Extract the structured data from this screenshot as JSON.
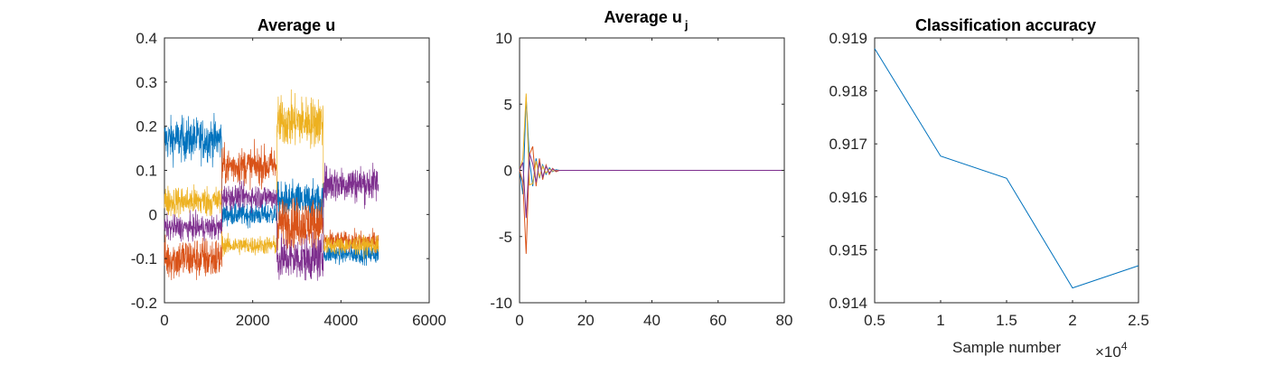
{
  "colors": [
    "#0072BD",
    "#D95319",
    "#EDB120",
    "#7E2F8E"
  ],
  "chart_data": [
    {
      "type": "line",
      "title": "Average u",
      "xlabel": "",
      "ylabel": "",
      "xlim": [
        0,
        6000
      ],
      "ylim": [
        -0.2,
        0.4
      ],
      "xticks": [
        0,
        2000,
        4000,
        6000
      ],
      "yticks": [
        -0.2,
        -0.1,
        0,
        0.1,
        0.2,
        0.3,
        0.4
      ],
      "xtick_labels": [
        "0",
        "2000",
        "4000",
        "6000"
      ],
      "ytick_labels": [
        "-0.2",
        "-0.1",
        "0",
        "0.1",
        "0.2",
        "0.3",
        "0.4"
      ],
      "note": "noisy signals, approx. 4800 samples, four segments of ~1200 samples",
      "segments_x": [
        [
          0,
          1300
        ],
        [
          1300,
          2550
        ],
        [
          2550,
          3600
        ],
        [
          3600,
          4850
        ]
      ],
      "series": [
        {
          "mean": [
            0.17,
            0.0,
            0.03,
            -0.09
          ],
          "noise": [
            0.035,
            0.018,
            0.03,
            0.015
          ]
        },
        {
          "mean": [
            -0.1,
            0.11,
            -0.02,
            -0.06
          ],
          "noise": [
            0.035,
            0.03,
            0.04,
            0.015
          ]
        },
        {
          "mean": [
            0.03,
            -0.07,
            0.21,
            -0.07
          ],
          "noise": [
            0.025,
            0.015,
            0.04,
            0.015
          ]
        },
        {
          "mean": [
            -0.03,
            0.04,
            -0.1,
            0.07
          ],
          "noise": [
            0.02,
            0.02,
            0.035,
            0.03
          ]
        }
      ]
    },
    {
      "type": "line",
      "title": "Average u",
      "title_subscript": "j",
      "xlabel": "",
      "ylabel": "",
      "xlim": [
        0,
        80
      ],
      "ylim": [
        -10,
        10
      ],
      "xticks": [
        0,
        20,
        40,
        60,
        80
      ],
      "yticks": [
        -10,
        -5,
        0,
        5,
        10
      ],
      "xtick_labels": [
        "0",
        "20",
        "40",
        "60",
        "80"
      ],
      "ytick_labels": [
        "-10",
        "-5",
        "0",
        "5",
        "10"
      ],
      "series": [
        {
          "x": [
            0,
            1,
            2,
            3,
            4,
            5,
            6,
            7,
            8,
            9,
            10,
            11,
            12,
            14,
            16,
            20,
            80
          ],
          "y": [
            0,
            -1.8,
            5.5,
            0.8,
            -1.2,
            0.9,
            -0.6,
            0.4,
            -0.3,
            0.2,
            -0.1,
            0.05,
            0,
            0,
            0,
            0,
            0
          ]
        },
        {
          "x": [
            0,
            1,
            2,
            3,
            4,
            5,
            6,
            7,
            8,
            9,
            10,
            11,
            12,
            14,
            16,
            20,
            80
          ],
          "y": [
            0,
            -0.9,
            -6.3,
            1.2,
            1.8,
            -1.2,
            0.9,
            -0.7,
            0.4,
            -0.3,
            0.15,
            -0.1,
            0,
            0,
            0,
            0,
            0
          ]
        },
        {
          "x": [
            0,
            1,
            2,
            3,
            4,
            5,
            6,
            7,
            8,
            9,
            10,
            11,
            12,
            14,
            16,
            20,
            80
          ],
          "y": [
            0,
            0.9,
            5.8,
            -1.1,
            -1.0,
            0.7,
            -0.5,
            0.3,
            -0.2,
            0.1,
            -0.05,
            0,
            0,
            0,
            0,
            0,
            0
          ]
        },
        {
          "x": [
            0,
            1,
            2,
            3,
            4,
            5,
            6,
            7,
            8,
            9,
            10,
            11,
            12,
            14,
            16,
            20,
            80
          ],
          "y": [
            0,
            0.6,
            -3.6,
            1.3,
            0.5,
            -0.9,
            0.6,
            -0.5,
            0.3,
            -0.2,
            0.1,
            -0.05,
            0,
            0,
            0,
            0,
            0
          ]
        }
      ]
    },
    {
      "type": "line",
      "title": "Classification accuracy",
      "xlabel": "Sample number",
      "x_exponent": "×10",
      "x_exponent_power": "4",
      "ylabel": "",
      "xlim": [
        0.5,
        2.5
      ],
      "ylim": [
        0.914,
        0.919
      ],
      "xticks": [
        0.5,
        1,
        1.5,
        2,
        2.5
      ],
      "yticks": [
        0.914,
        0.915,
        0.916,
        0.917,
        0.918,
        0.919
      ],
      "xtick_labels": [
        "0.5",
        "1",
        "1.5",
        "2",
        "2.5"
      ],
      "ytick_labels": [
        "0.914",
        "0.915",
        "0.916",
        "0.917",
        "0.918",
        "0.919"
      ],
      "series": [
        {
          "x": [
            0.5,
            1,
            1.5,
            2,
            2.5
          ],
          "y": [
            0.9188,
            0.91677,
            0.91635,
            0.91428,
            0.9147
          ]
        }
      ]
    }
  ]
}
